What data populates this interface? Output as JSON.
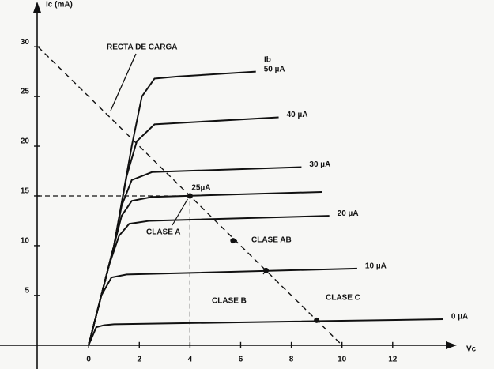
{
  "chart_data": {
    "type": "line",
    "y_label": "Ic (mA)",
    "x_label": "Vc",
    "legend_title": "Ib",
    "xlim": [
      -3.5,
      16
    ],
    "ylim": [
      -2.4,
      34.7
    ],
    "xticks": [
      0,
      2,
      4,
      6,
      8,
      10,
      12
    ],
    "yticks": [
      5,
      10,
      15,
      20,
      25,
      30
    ],
    "series": [
      {
        "name": "50 µA",
        "color": "#111111",
        "x": [
          0,
          1,
          1.7,
          2.1,
          2.6,
          3.5,
          6.6
        ],
        "values": [
          0,
          10,
          20,
          25,
          26.8,
          27,
          27.5
        ]
      },
      {
        "name": "40 µA",
        "color": "#111111",
        "x": [
          0,
          1,
          1.5,
          1.9,
          2.6,
          7.5
        ],
        "values": [
          0,
          10,
          17,
          20.5,
          22.2,
          22.9
        ]
      },
      {
        "name": "30 µA",
        "color": "#111111",
        "x": [
          0,
          1,
          1.3,
          1.7,
          2.5,
          8.4
        ],
        "values": [
          0,
          10,
          14,
          16.6,
          17.4,
          17.9
        ]
      },
      {
        "name": "25µA",
        "color": "#111111",
        "x": [
          0,
          1,
          1.3,
          1.7,
          2.5,
          9.2
        ],
        "values": [
          0,
          10,
          13,
          14.5,
          14.9,
          15.4
        ]
      },
      {
        "name": "20 µA",
        "color": "#111111",
        "x": [
          0,
          0.8,
          1.2,
          1.6,
          2.4,
          9.5
        ],
        "values": [
          0,
          8,
          11,
          12.2,
          12.5,
          13
        ]
      },
      {
        "name": "10 µA",
        "color": "#111111",
        "x": [
          0,
          0.5,
          0.9,
          1.5,
          10.6
        ],
        "values": [
          0,
          5,
          6.8,
          7.1,
          7.7
        ]
      },
      {
        "name": "0 µA",
        "color": "#111111",
        "x": [
          0,
          0.3,
          0.6,
          1,
          14
        ],
        "values": [
          0,
          1.8,
          2,
          2.1,
          2.6
        ]
      }
    ],
    "load_line": {
      "name": "RECTA DE CARGA",
      "x": [
        -2,
        10
      ],
      "values": [
        30,
        0
      ]
    },
    "points": [
      {
        "name": "CLASE A",
        "x": 4,
        "value": 15
      },
      {
        "name": "CLASE AB",
        "x": 5.7,
        "value": 10.5
      },
      {
        "name": "CLASE B",
        "x": 7,
        "value": 7.5
      },
      {
        "name": "CLASE C",
        "x": 9,
        "value": 2.5
      }
    ]
  }
}
